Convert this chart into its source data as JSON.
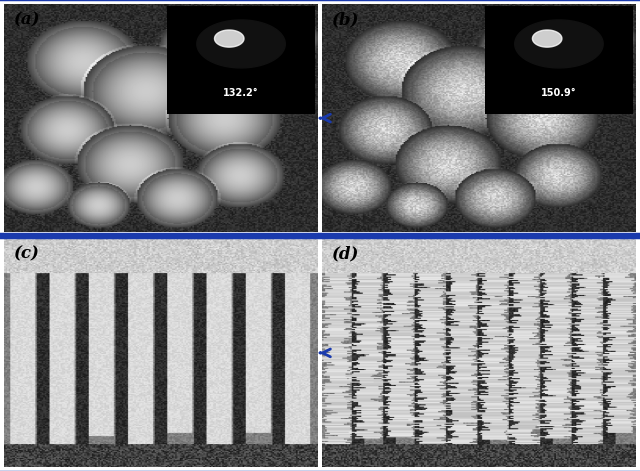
{
  "fig_width": 6.4,
  "fig_height": 4.71,
  "dpi": 100,
  "border_color": "#1a3aad",
  "border_linewidth": 2.5,
  "arrow_color": "#1a3aad",
  "panel_labels": [
    "(a)",
    "(b)",
    "(c)",
    "(d)"
  ],
  "label_fontsize": 12,
  "label_color": "black",
  "angle_a": "132.2°",
  "angle_b": "150.9°"
}
